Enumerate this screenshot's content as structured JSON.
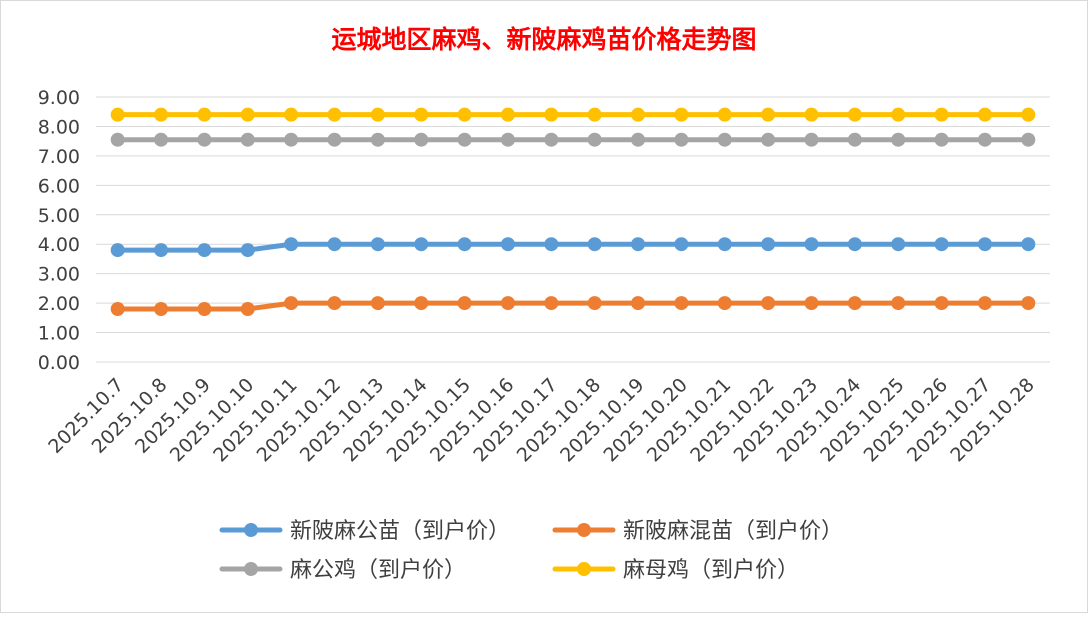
{
  "chart_data": {
    "type": "line",
    "title": "运城地区麻鸡、新陂麻鸡苗价格走势图",
    "title_color": "#FF0000",
    "categories": [
      "2025.10.7",
      "2025.10.8",
      "2025.10.9",
      "2025.10.10",
      "2025.10.11",
      "2025.10.12",
      "2025.10.13",
      "2025.10.14",
      "2025.10.15",
      "2025.10.16",
      "2025.10.17",
      "2025.10.18",
      "2025.10.19",
      "2025.10.20",
      "2025.10.21",
      "2025.10.22",
      "2025.10.23",
      "2025.10.24",
      "2025.10.25",
      "2025.10.26",
      "2025.10.27",
      "2025.10.28"
    ],
    "ylim": [
      0,
      9
    ],
    "y_ticks": [
      "0.00",
      "1.00",
      "2.00",
      "3.00",
      "4.00",
      "5.00",
      "6.00",
      "7.00",
      "8.00",
      "9.00"
    ],
    "grid": true,
    "legend_position": "bottom",
    "series": [
      {
        "name": "新陂麻公苗（到户价）",
        "color": "#5B9BD5",
        "values": [
          3.8,
          3.8,
          3.8,
          3.8,
          4.0,
          4.0,
          4.0,
          4.0,
          4.0,
          4.0,
          4.0,
          4.0,
          4.0,
          4.0,
          4.0,
          4.0,
          4.0,
          4.0,
          4.0,
          4.0,
          4.0,
          4.0
        ]
      },
      {
        "name": "新陂麻混苗（到户价）",
        "color": "#ED7D31",
        "values": [
          1.8,
          1.8,
          1.8,
          1.8,
          2.0,
          2.0,
          2.0,
          2.0,
          2.0,
          2.0,
          2.0,
          2.0,
          2.0,
          2.0,
          2.0,
          2.0,
          2.0,
          2.0,
          2.0,
          2.0,
          2.0,
          2.0
        ]
      },
      {
        "name": "麻公鸡（到户价）",
        "color": "#A5A5A5",
        "values": [
          7.55,
          7.55,
          7.55,
          7.55,
          7.55,
          7.55,
          7.55,
          7.55,
          7.55,
          7.55,
          7.55,
          7.55,
          7.55,
          7.55,
          7.55,
          7.55,
          7.55,
          7.55,
          7.55,
          7.55,
          7.55,
          7.55
        ]
      },
      {
        "name": "麻母鸡（到户价）",
        "color": "#FFC000",
        "values": [
          8.4,
          8.4,
          8.4,
          8.4,
          8.4,
          8.4,
          8.4,
          8.4,
          8.4,
          8.4,
          8.4,
          8.4,
          8.4,
          8.4,
          8.4,
          8.4,
          8.4,
          8.4,
          8.4,
          8.4,
          8.4,
          8.4
        ]
      }
    ]
  }
}
